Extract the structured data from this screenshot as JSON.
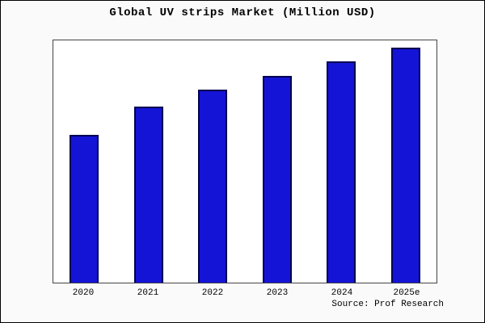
{
  "chart_data": {
    "type": "bar",
    "title": "Global UV strips Market (Million USD)",
    "categories": [
      "2020",
      "2021",
      "2022",
      "2023",
      "2024",
      "2025e"
    ],
    "values": [
      63,
      75,
      82,
      88,
      94,
      100
    ],
    "xlabel": "",
    "ylabel": "",
    "ylim": [
      0,
      103
    ],
    "grid": false,
    "legend": "none",
    "bar_fill": "#1414d6",
    "bar_border": "#000050",
    "note": "y-axis has no tick labels; values are relative estimates scaled to tallest bar = 100"
  },
  "source": {
    "text": "Source: Prof Research"
  }
}
